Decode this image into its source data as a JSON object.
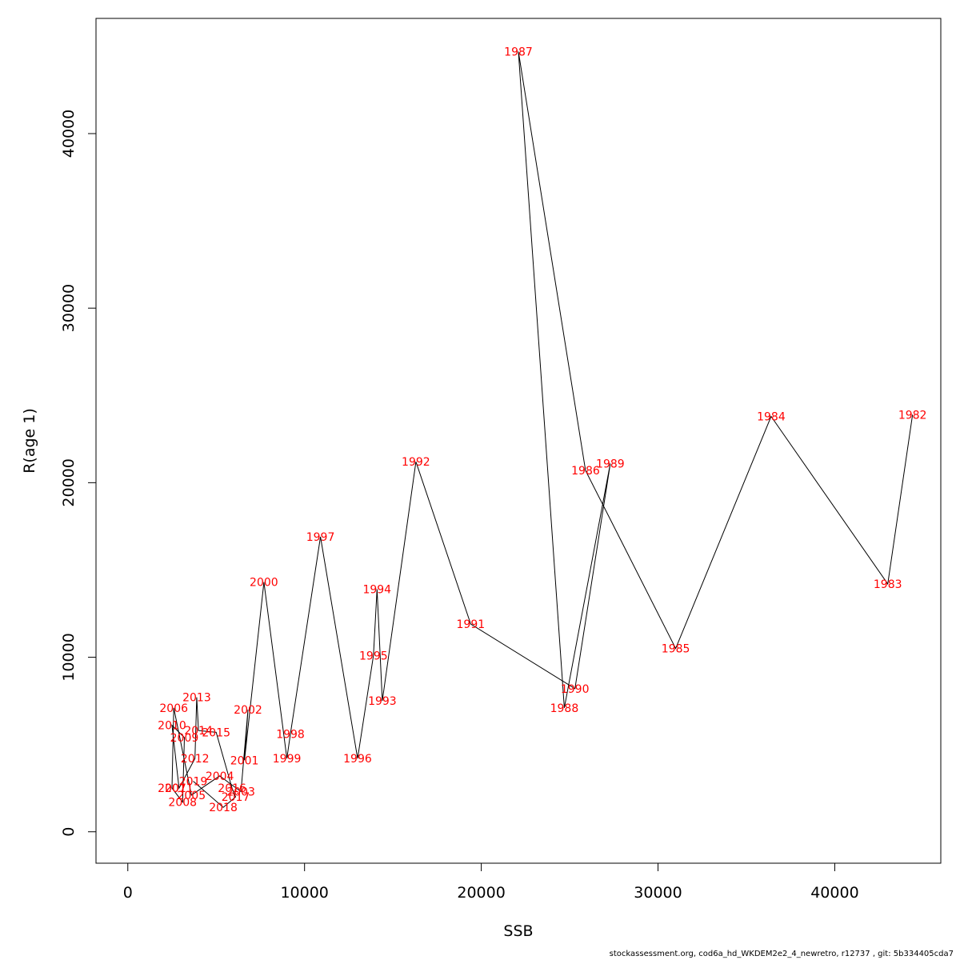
{
  "chart_data": {
    "type": "scatter",
    "connected": true,
    "xlabel": "SSB",
    "ylabel": "R(age 1)",
    "xlim": [
      -1800,
      46000
    ],
    "ylim": [
      -1800,
      46600
    ],
    "x_ticks": [
      0,
      10000,
      20000,
      30000,
      40000
    ],
    "y_ticks": [
      0,
      10000,
      20000,
      30000,
      40000
    ],
    "x_tick_labels": [
      "0",
      "10000",
      "20000",
      "30000",
      "40000"
    ],
    "y_tick_labels": [
      "0",
      "10000",
      "20000",
      "30000",
      "40000"
    ],
    "grid": false,
    "label_color": "#ff0000",
    "line_color": "#000000",
    "points": [
      {
        "label": "1982",
        "x": 44400,
        "y": 23900
      },
      {
        "label": "1983",
        "x": 43000,
        "y": 14200
      },
      {
        "label": "1984",
        "x": 36400,
        "y": 23800
      },
      {
        "label": "1985",
        "x": 31000,
        "y": 10500
      },
      {
        "label": "1986",
        "x": 25900,
        "y": 20700
      },
      {
        "label": "1987",
        "x": 22100,
        "y": 44700
      },
      {
        "label": "1988",
        "x": 24700,
        "y": 7100
      },
      {
        "label": "1989",
        "x": 27300,
        "y": 21100
      },
      {
        "label": "1990",
        "x": 25300,
        "y": 8200
      },
      {
        "label": "1991",
        "x": 19400,
        "y": 11900
      },
      {
        "label": "1992",
        "x": 16300,
        "y": 21200
      },
      {
        "label": "1993",
        "x": 14400,
        "y": 7500
      },
      {
        "label": "1994",
        "x": 14100,
        "y": 13900
      },
      {
        "label": "1995",
        "x": 13900,
        "y": 10100
      },
      {
        "label": "1996",
        "x": 13000,
        "y": 4200
      },
      {
        "label": "1997",
        "x": 10900,
        "y": 16900
      },
      {
        "label": "1998",
        "x": 9200,
        "y": 5600
      },
      {
        "label": "1999",
        "x": 9000,
        "y": 4200
      },
      {
        "label": "2000",
        "x": 7700,
        "y": 14300
      },
      {
        "label": "2001",
        "x": 6600,
        "y": 4100
      },
      {
        "label": "2002",
        "x": 6800,
        "y": 7000
      },
      {
        "label": "2003",
        "x": 6400,
        "y": 2300
      },
      {
        "label": "2004",
        "x": 5200,
        "y": 3200
      },
      {
        "label": "2005",
        "x": 3600,
        "y": 2100
      },
      {
        "label": "2006",
        "x": 2600,
        "y": 7100
      },
      {
        "label": "2007",
        "x": 2500,
        "y": 2500
      },
      {
        "label": "2008",
        "x": 3100,
        "y": 1700
      },
      {
        "label": "2009",
        "x": 3200,
        "y": 5400
      },
      {
        "label": "2010",
        "x": 2500,
        "y": 6100
      },
      {
        "label": "2011",
        "x": 2900,
        "y": 2500
      },
      {
        "label": "2012",
        "x": 3800,
        "y": 4200
      },
      {
        "label": "2013",
        "x": 3900,
        "y": 7700
      },
      {
        "label": "2014",
        "x": 4000,
        "y": 5800
      },
      {
        "label": "2015",
        "x": 5000,
        "y": 5700
      },
      {
        "label": "2016",
        "x": 5900,
        "y": 2500
      },
      {
        "label": "2017",
        "x": 6100,
        "y": 2000
      },
      {
        "label": "2018",
        "x": 5400,
        "y": 1400
      },
      {
        "label": "2019",
        "x": 3700,
        "y": 2900
      }
    ]
  },
  "footer": "stockassessment.org, cod6a_hd_WKDEM2e2_4_newretro, r12737 , git: 5b334405cda7"
}
